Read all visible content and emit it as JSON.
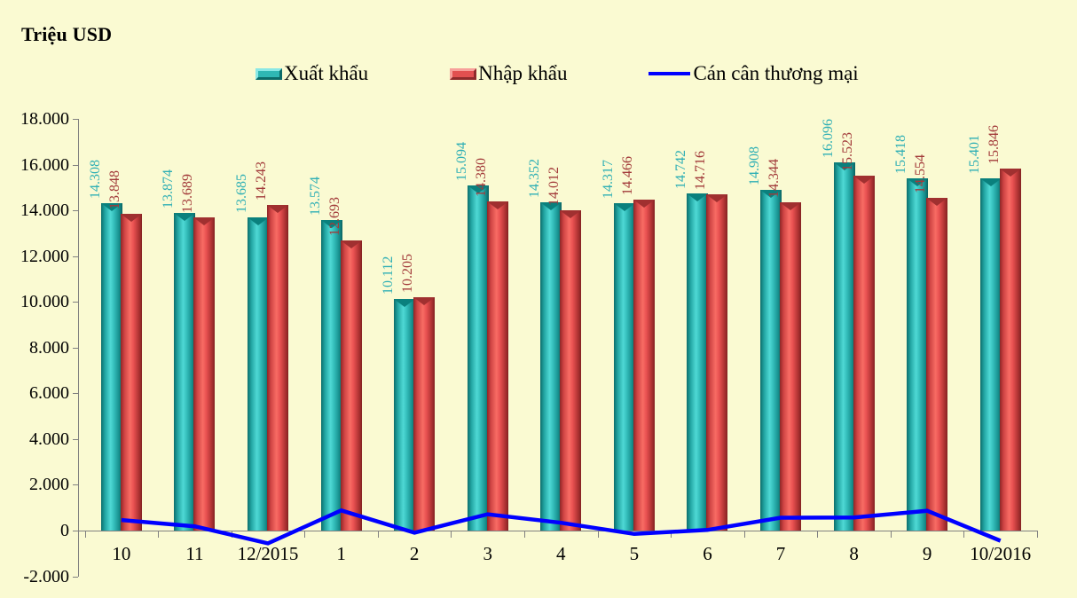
{
  "title": "Triệu USD",
  "legend": [
    {
      "label": "Xuất khẩu",
      "type": "bar-swatch",
      "color": "#2fb7b4"
    },
    {
      "label": "Nhập khẩu",
      "type": "bar-swatch",
      "color": "#e25050"
    },
    {
      "label": "Cán cân thương mại",
      "type": "line-swatch",
      "color": "#0000FF"
    }
  ],
  "chart_data": {
    "type": "bar",
    "subtype": "grouped-bars-with-line-overlay",
    "title": "Triệu USD",
    "categories": [
      "10",
      "11",
      "12/2015",
      "1",
      "2",
      "3",
      "4",
      "5",
      "6",
      "7",
      "8",
      "9",
      "10/2016"
    ],
    "series": [
      {
        "name": "Xuất khẩu",
        "type": "bar",
        "color": "#2fb7b4",
        "values": [
          14308,
          13874,
          13685,
          13574,
          10112,
          15094,
          14352,
          14317,
          14742,
          14908,
          16096,
          15418,
          15401
        ],
        "labels": [
          "14.308",
          "13.874",
          "13.685",
          "13.574",
          "10.112",
          "15.094",
          "14.352",
          "14.317",
          "14.742",
          "14.908",
          "16.096",
          "15.418",
          "15.401"
        ]
      },
      {
        "name": "Nhập khẩu",
        "type": "bar",
        "color": "#e25050",
        "values": [
          13848,
          13689,
          14243,
          12693,
          10205,
          14380,
          14012,
          14466,
          14716,
          14344,
          15523,
          14554,
          15846
        ],
        "labels": [
          "13.848",
          "13.689",
          "14.243",
          "12.693",
          "10.205",
          "14.380",
          "14.012",
          "14.466",
          "14.716",
          "14.344",
          "15.523",
          "14.554",
          "15.846"
        ]
      }
    ],
    "line_series": {
      "name": "Cán cân thương mại",
      "type": "line",
      "color": "#0000FF",
      "values": [
        460,
        185,
        -558,
        881,
        -93,
        714,
        340,
        -149,
        26,
        564,
        573,
        864,
        -445
      ]
    },
    "ylim": [
      -2000,
      18000
    ],
    "ytick_step": 2000,
    "ytick_labels": [
      "-2.000",
      "0",
      "2.000",
      "4.000",
      "6.000",
      "8.000",
      "10.000",
      "12.000",
      "14.000",
      "16.000",
      "18.000"
    ],
    "grid": false,
    "legend_position": "top-center",
    "background_color": "#FAFAD2"
  }
}
